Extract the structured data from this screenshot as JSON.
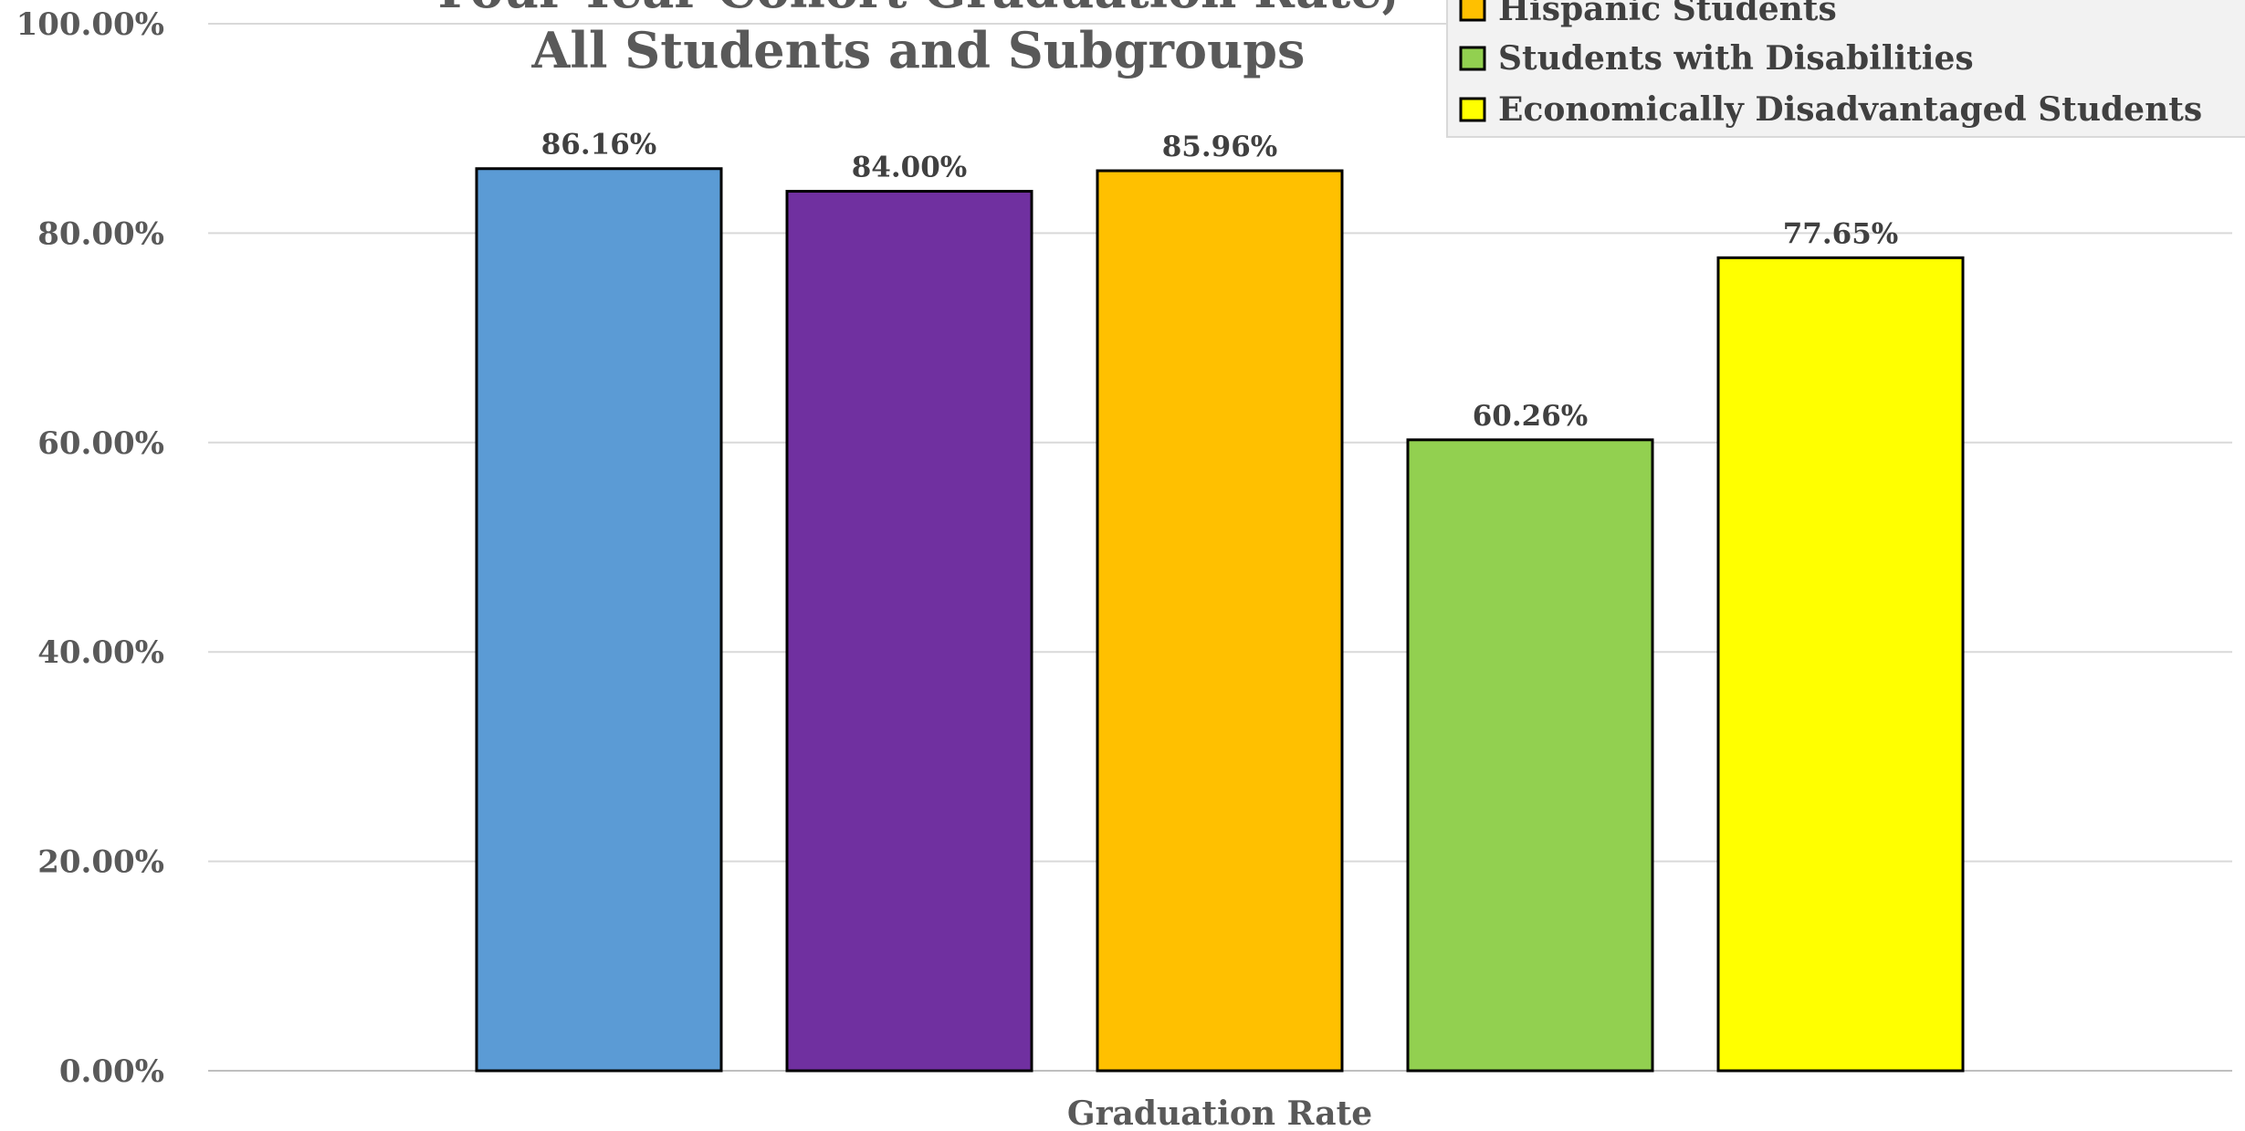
{
  "chart_data": {
    "type": "bar",
    "title_lines": [
      "Four-Year Cohort Graduation Rate,",
      "All Students and Subgroups"
    ],
    "xlabel": "Graduation Rate",
    "ylabel": "",
    "categories": [
      "Graduation Rate"
    ],
    "ylim": [
      0,
      100
    ],
    "yticks": [
      "0.00%",
      "20.00%",
      "40.00%",
      "60.00%",
      "80.00%",
      "100.00%"
    ],
    "grid": true,
    "legend_position": "top-right",
    "series": [
      {
        "name": "",
        "values": [
          86.16
        ],
        "label": "86.16%",
        "color": "#5B9BD5"
      },
      {
        "name": "",
        "values": [
          84.0
        ],
        "label": "84.00%",
        "color": "#7030A0"
      },
      {
        "name": "Hispanic Students",
        "values": [
          85.96
        ],
        "label": "85.96%",
        "color": "#FFC000"
      },
      {
        "name": "Students with Disabilities",
        "values": [
          60.26
        ],
        "label": "60.26%",
        "color": "#92D050"
      },
      {
        "name": "Economically Disadvantaged Students",
        "values": [
          77.65
        ],
        "label": "77.65%",
        "color": "#FFFF00"
      }
    ]
  }
}
